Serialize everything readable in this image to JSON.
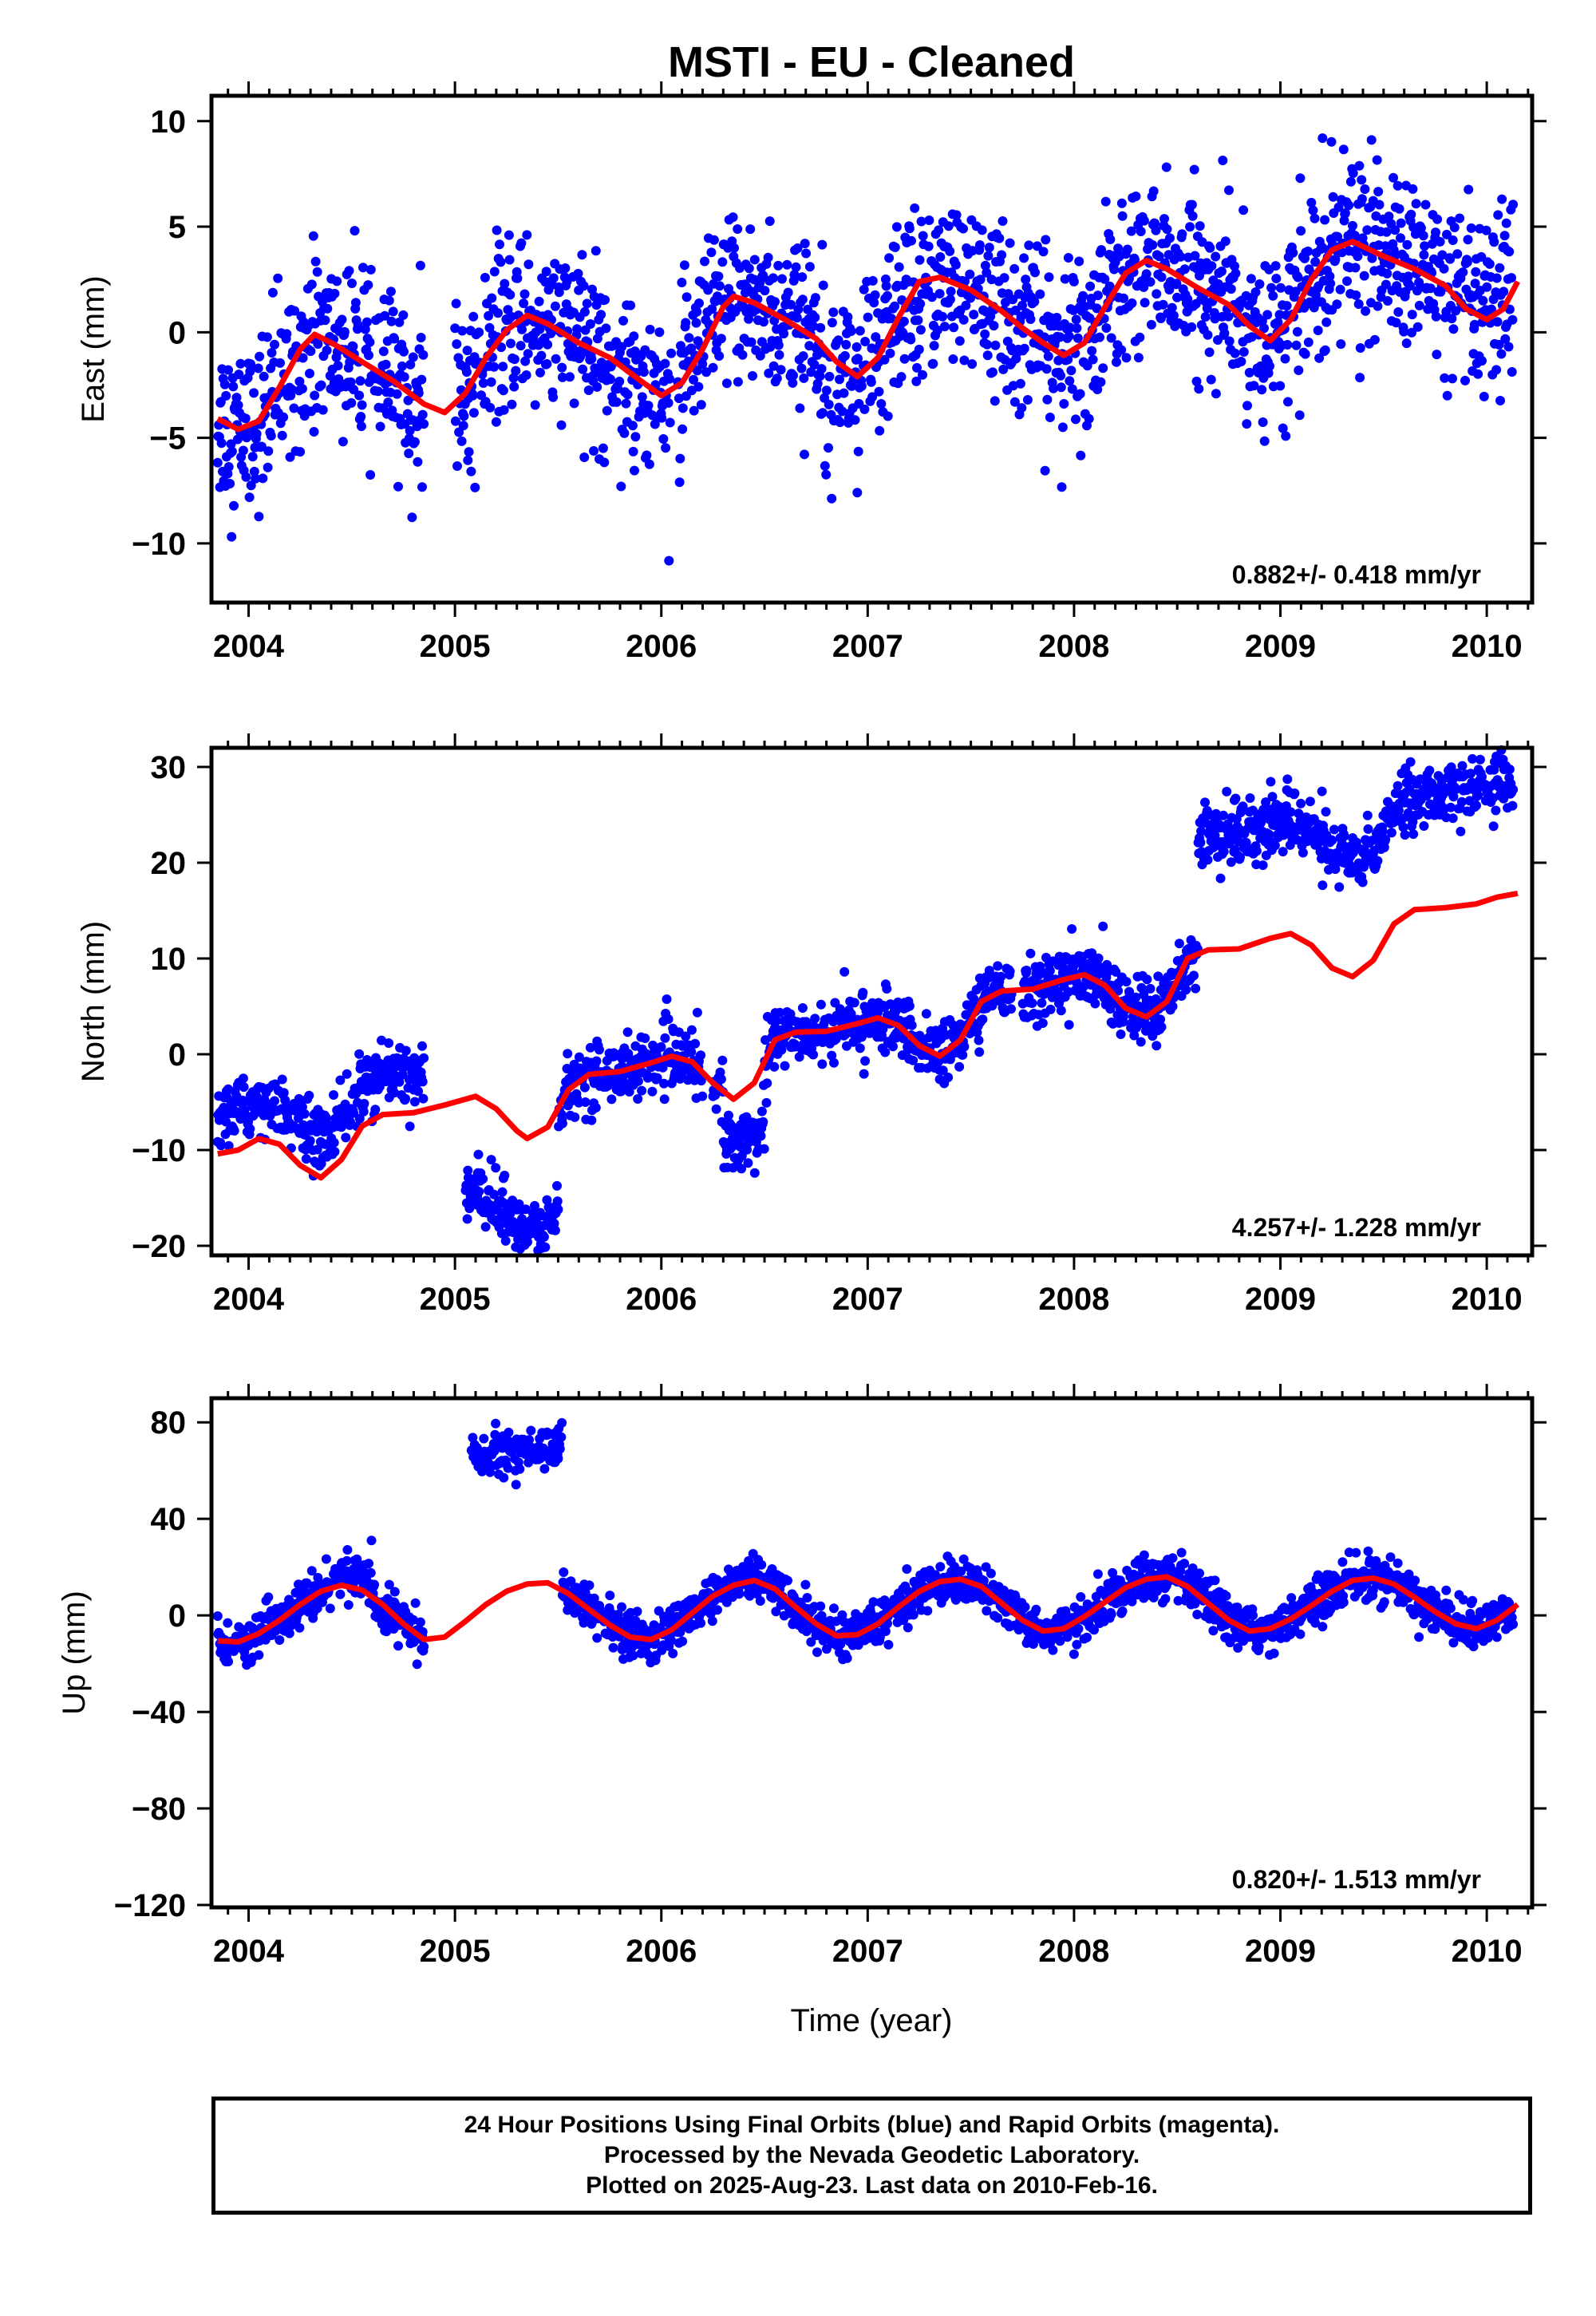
{
  "title": "MSTI  - EU - Cleaned",
  "colors": {
    "points": "#0000ff",
    "model": "#ff0000",
    "frame": "#000000"
  },
  "chart_data": [
    {
      "type": "scatter",
      "id": "east",
      "ylabel": "East (mm)",
      "xlabel": "",
      "xlim": [
        2003.82,
        2010.22
      ],
      "ylim": [
        -12.8,
        11.2
      ],
      "xticks": [
        2004,
        2005,
        2006,
        2007,
        2008,
        2009,
        2010
      ],
      "yticks": [
        10,
        5,
        0,
        -5,
        -10
      ],
      "rate": "0.882+/- 0.418 mm/yr",
      "model": [
        [
          2003.85,
          -4.1
        ],
        [
          2003.95,
          -4.6
        ],
        [
          2004.05,
          -4.2
        ],
        [
          2004.15,
          -2.6
        ],
        [
          2004.25,
          -0.8
        ],
        [
          2004.32,
          -0.1
        ],
        [
          2004.42,
          -0.6
        ],
        [
          2004.55,
          -1.4
        ],
        [
          2004.7,
          -2.3
        ],
        [
          2004.85,
          -3.4
        ],
        [
          2004.95,
          -3.8
        ],
        [
          2005.05,
          -2.9
        ],
        [
          2005.15,
          -1.2
        ],
        [
          2005.25,
          0.1
        ],
        [
          2005.35,
          0.8
        ],
        [
          2005.45,
          0.4
        ],
        [
          2005.6,
          -0.5
        ],
        [
          2005.75,
          -1.2
        ],
        [
          2005.9,
          -2.3
        ],
        [
          2006.0,
          -3.0
        ],
        [
          2006.1,
          -2.4
        ],
        [
          2006.2,
          -0.8
        ],
        [
          2006.3,
          1.2
        ],
        [
          2006.35,
          1.7
        ],
        [
          2006.45,
          1.4
        ],
        [
          2006.6,
          0.6
        ],
        [
          2006.75,
          -0.3
        ],
        [
          2006.85,
          -1.4
        ],
        [
          2006.95,
          -2.1
        ],
        [
          2007.05,
          -1.2
        ],
        [
          2007.15,
          0.7
        ],
        [
          2007.25,
          2.4
        ],
        [
          2007.35,
          2.6
        ],
        [
          2007.5,
          2.0
        ],
        [
          2007.65,
          1.0
        ],
        [
          2007.75,
          0.2
        ],
        [
          2007.85,
          -0.5
        ],
        [
          2007.95,
          -1.1
        ],
        [
          2008.05,
          -0.5
        ],
        [
          2008.15,
          1.2
        ],
        [
          2008.25,
          2.8
        ],
        [
          2008.35,
          3.4
        ],
        [
          2008.45,
          3.0
        ],
        [
          2008.6,
          2.1
        ],
        [
          2008.75,
          1.3
        ],
        [
          2008.85,
          0.3
        ],
        [
          2008.95,
          -0.4
        ],
        [
          2009.05,
          0.6
        ],
        [
          2009.15,
          2.5
        ],
        [
          2009.25,
          3.9
        ],
        [
          2009.35,
          4.3
        ],
        [
          2009.5,
          3.6
        ],
        [
          2009.65,
          3.0
        ],
        [
          2009.8,
          2.2
        ],
        [
          2009.9,
          1.1
        ],
        [
          2010.0,
          0.6
        ],
        [
          2010.08,
          1.1
        ],
        [
          2010.15,
          2.4
        ]
      ]
    },
    {
      "type": "scatter",
      "id": "north",
      "ylabel": "North (mm)",
      "xlabel": "",
      "xlim": [
        2003.82,
        2010.22
      ],
      "ylim": [
        -21,
        32
      ],
      "xticks": [
        2004,
        2005,
        2006,
        2007,
        2008,
        2009,
        2010
      ],
      "yticks": [
        30,
        20,
        10,
        0,
        -10,
        -20
      ],
      "rate": "4.257+/- 1.228 mm/yr",
      "model": [
        [
          2003.85,
          -10.4
        ],
        [
          2003.95,
          -10.0
        ],
        [
          2004.05,
          -8.8
        ],
        [
          2004.15,
          -9.4
        ],
        [
          2004.25,
          -11.6
        ],
        [
          2004.35,
          -12.9
        ],
        [
          2004.45,
          -11.0
        ],
        [
          2004.55,
          -7.5
        ],
        [
          2004.65,
          -6.3
        ],
        [
          2004.8,
          -6.1
        ],
        [
          2004.95,
          -5.3
        ],
        [
          2005.1,
          -4.4
        ],
        [
          2005.2,
          -5.7
        ],
        [
          2005.3,
          -8.0
        ],
        [
          2005.35,
          -8.8
        ],
        [
          2005.45,
          -7.6
        ],
        [
          2005.55,
          -3.7
        ],
        [
          2005.65,
          -2.1
        ],
        [
          2005.8,
          -1.8
        ],
        [
          2005.95,
          -0.9
        ],
        [
          2006.05,
          -0.2
        ],
        [
          2006.15,
          -0.8
        ],
        [
          2006.25,
          -3.0
        ],
        [
          2006.35,
          -4.7
        ],
        [
          2006.45,
          -3.0
        ],
        [
          2006.55,
          1.5
        ],
        [
          2006.65,
          2.3
        ],
        [
          2006.8,
          2.4
        ],
        [
          2006.95,
          3.2
        ],
        [
          2007.05,
          3.8
        ],
        [
          2007.15,
          3.0
        ],
        [
          2007.25,
          0.9
        ],
        [
          2007.35,
          -0.2
        ],
        [
          2007.45,
          1.5
        ],
        [
          2007.55,
          5.5
        ],
        [
          2007.65,
          6.6
        ],
        [
          2007.8,
          6.8
        ],
        [
          2007.95,
          7.8
        ],
        [
          2008.05,
          8.3
        ],
        [
          2008.15,
          7.2
        ],
        [
          2008.25,
          4.8
        ],
        [
          2008.35,
          3.9
        ],
        [
          2008.45,
          5.5
        ],
        [
          2008.55,
          10.0
        ],
        [
          2008.65,
          10.9
        ],
        [
          2008.8,
          11.0
        ],
        [
          2008.95,
          12.1
        ],
        [
          2009.05,
          12.6
        ],
        [
          2009.15,
          11.4
        ],
        [
          2009.25,
          9.0
        ],
        [
          2009.35,
          8.1
        ],
        [
          2009.45,
          9.8
        ],
        [
          2009.55,
          13.6
        ],
        [
          2009.65,
          15.1
        ],
        [
          2009.8,
          15.3
        ],
        [
          2009.95,
          15.7
        ],
        [
          2010.05,
          16.4
        ],
        [
          2010.15,
          16.8
        ]
      ]
    },
    {
      "type": "scatter",
      "id": "up",
      "ylabel": "Up (mm)",
      "xlabel": "Time (year)",
      "xlim": [
        2003.82,
        2010.22
      ],
      "ylim": [
        -121,
        90
      ],
      "xticks": [
        2004,
        2005,
        2006,
        2007,
        2008,
        2009,
        2010
      ],
      "yticks": [
        80,
        40,
        0,
        -40,
        -80,
        -120
      ],
      "rate": "0.820+/- 1.513 mm/yr",
      "model": [
        [
          2003.85,
          -10.5
        ],
        [
          2003.95,
          -11.0
        ],
        [
          2004.05,
          -7.5
        ],
        [
          2004.15,
          -2.0
        ],
        [
          2004.25,
          4.5
        ],
        [
          2004.35,
          10.0
        ],
        [
          2004.45,
          12.5
        ],
        [
          2004.55,
          10.5
        ],
        [
          2004.65,
          4.5
        ],
        [
          2004.75,
          -3.5
        ],
        [
          2004.85,
          -10.0
        ],
        [
          2004.95,
          -9.0
        ],
        [
          2005.05,
          -2.5
        ],
        [
          2005.15,
          4.5
        ],
        [
          2005.25,
          10.0
        ],
        [
          2005.35,
          13.0
        ],
        [
          2005.45,
          13.5
        ],
        [
          2005.55,
          9.0
        ],
        [
          2005.65,
          2.5
        ],
        [
          2005.75,
          -4.0
        ],
        [
          2005.85,
          -9.0
        ],
        [
          2005.95,
          -10.0
        ],
        [
          2006.05,
          -6.0
        ],
        [
          2006.15,
          1.0
        ],
        [
          2006.25,
          8.0
        ],
        [
          2006.35,
          12.5
        ],
        [
          2006.45,
          14.5
        ],
        [
          2006.55,
          11.0
        ],
        [
          2006.65,
          3.5
        ],
        [
          2006.75,
          -3.5
        ],
        [
          2006.85,
          -8.5
        ],
        [
          2006.95,
          -8.0
        ],
        [
          2007.05,
          -3.5
        ],
        [
          2007.15,
          3.5
        ],
        [
          2007.25,
          10.0
        ],
        [
          2007.35,
          14.0
        ],
        [
          2007.45,
          15.0
        ],
        [
          2007.55,
          12.0
        ],
        [
          2007.65,
          5.0
        ],
        [
          2007.75,
          -2.0
        ],
        [
          2007.85,
          -6.5
        ],
        [
          2007.95,
          -5.5
        ],
        [
          2008.05,
          -0.5
        ],
        [
          2008.15,
          5.5
        ],
        [
          2008.25,
          11.5
        ],
        [
          2008.35,
          15.0
        ],
        [
          2008.45,
          16.0
        ],
        [
          2008.55,
          12.0
        ],
        [
          2008.65,
          5.0
        ],
        [
          2008.75,
          -2.0
        ],
        [
          2008.85,
          -6.5
        ],
        [
          2008.95,
          -5.5
        ],
        [
          2009.05,
          -1.5
        ],
        [
          2009.15,
          4.0
        ],
        [
          2009.25,
          10.0
        ],
        [
          2009.35,
          14.5
        ],
        [
          2009.45,
          15.5
        ],
        [
          2009.55,
          13.0
        ],
        [
          2009.65,
          7.5
        ],
        [
          2009.75,
          1.5
        ],
        [
          2009.85,
          -3.5
        ],
        [
          2009.95,
          -5.5
        ],
        [
          2010.05,
          -2.0
        ],
        [
          2010.15,
          4.5
        ]
      ]
    }
  ],
  "footer": {
    "line1": "24 Hour Positions Using Final Orbits (blue) and Rapid Orbits (magenta).",
    "line2": "Processed by the Nevada Geodetic Laboratory.",
    "line3": "Plotted on 2025-Aug-23. Last data on 2010-Feb-16."
  }
}
